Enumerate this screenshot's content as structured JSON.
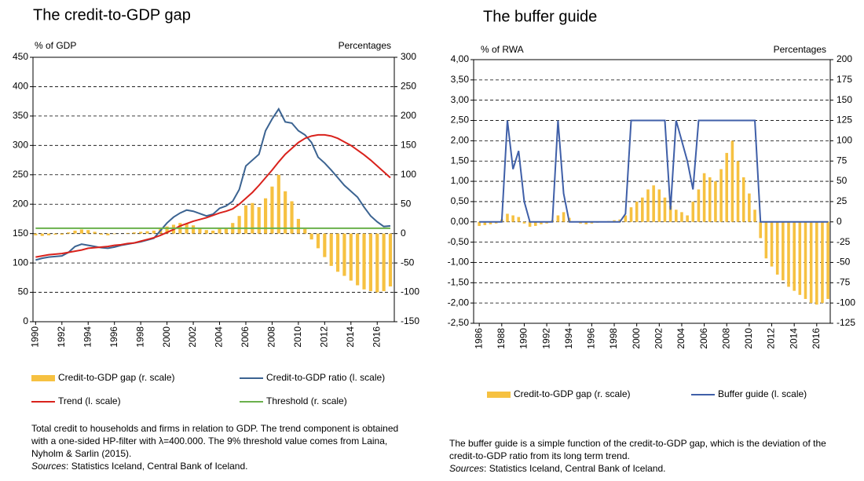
{
  "chart_data": [
    {
      "type": "combo",
      "title": "The credit-to-GDP gap",
      "y_label": "% of GDP",
      "y2_label": "Percentages",
      "xlim": [
        1989.8,
        2017.3
      ],
      "xticks": [
        1990,
        1992,
        1994,
        1996,
        1998,
        2000,
        2002,
        2004,
        2006,
        2008,
        2010,
        2012,
        2014,
        2016
      ],
      "ylim": [
        0,
        450
      ],
      "yticks": [
        0,
        50,
        100,
        150,
        200,
        250,
        300,
        350,
        400,
        450
      ],
      "y2lim": [
        -150,
        300
      ],
      "y2ticks": [
        -150,
        -100,
        -50,
        0,
        50,
        100,
        150,
        200,
        250,
        300
      ],
      "grid": true,
      "x": [
        1990,
        1990.5,
        1991,
        1991.5,
        1992,
        1992.5,
        1993,
        1993.5,
        1994,
        1994.5,
        1995,
        1995.5,
        1996,
        1996.5,
        1997,
        1997.5,
        1998,
        1998.5,
        1999,
        1999.5,
        2000,
        2000.5,
        2001,
        2001.5,
        2002,
        2002.5,
        2003,
        2003.5,
        2004,
        2004.5,
        2005,
        2005.5,
        2006,
        2006.5,
        2007,
        2007.5,
        2008,
        2008.5,
        2009,
        2009.5,
        2010,
        2010.5,
        2011,
        2011.5,
        2012,
        2012.5,
        2013,
        2013.5,
        2014,
        2014.5,
        2015,
        2015.5,
        2016,
        2016.5,
        2017
      ],
      "series": [
        {
          "name": "Credit-to-GDP gap (r. scale)",
          "type": "bar",
          "axis": "y2",
          "color": "#f6c141",
          "values": [
            -3,
            -4,
            -3,
            -2,
            -2,
            2,
            5,
            7,
            6,
            3,
            -2,
            -3,
            -1,
            0,
            1,
            2,
            3,
            4,
            5,
            8,
            12,
            15,
            18,
            17,
            14,
            10,
            6,
            5,
            8,
            10,
            18,
            30,
            48,
            52,
            45,
            60,
            80,
            100,
            72,
            55,
            25,
            8,
            -10,
            -25,
            -40,
            -55,
            -65,
            -72,
            -80,
            -88,
            -95,
            -98,
            -100,
            -98,
            -90
          ]
        },
        {
          "name": "Credit-to-GDP ratio (l. scale)",
          "type": "line",
          "color": "#3b6391",
          "values": [
            105,
            108,
            110,
            111,
            112,
            118,
            128,
            132,
            130,
            128,
            126,
            125,
            127,
            130,
            132,
            134,
            136,
            139,
            142,
            155,
            168,
            178,
            185,
            190,
            188,
            184,
            180,
            183,
            193,
            197,
            205,
            225,
            265,
            275,
            285,
            325,
            345,
            362,
            340,
            338,
            325,
            318,
            305,
            280,
            270,
            258,
            245,
            232,
            222,
            212,
            195,
            180,
            170,
            162,
            163
          ]
        },
        {
          "name": "Trend (l. scale)",
          "type": "line",
          "color": "#d9221c",
          "values": [
            110,
            112,
            114,
            115,
            116,
            118,
            120,
            122,
            125,
            126,
            127,
            128,
            130,
            131,
            133,
            134,
            137,
            140,
            143,
            147,
            152,
            157,
            163,
            167,
            171,
            174,
            177,
            181,
            185,
            188,
            192,
            200,
            210,
            220,
            232,
            245,
            258,
            272,
            285,
            295,
            305,
            312,
            316,
            318,
            318,
            316,
            312,
            306,
            300,
            292,
            284,
            275,
            265,
            255,
            245
          ]
        },
        {
          "name": "Threshold (r. scale)",
          "type": "line",
          "axis": "y2",
          "color": "#6ab04c",
          "values": [
            9,
            9,
            9,
            9,
            9,
            9,
            9,
            9,
            9,
            9,
            9,
            9,
            9,
            9,
            9,
            9,
            9,
            9,
            9,
            9,
            9,
            9,
            9,
            9,
            9,
            9,
            9,
            9,
            9,
            9,
            9,
            9,
            9,
            9,
            9,
            9,
            9,
            9,
            9,
            9,
            9,
            9,
            9,
            9,
            9,
            9,
            9,
            9,
            9,
            9,
            9,
            9,
            9,
            9,
            9
          ]
        }
      ],
      "note": "Total credit to households and firms in relation to GDP. The trend component is obtained with a one-sided HP-filter with λ=400.000. The 9% threshold value comes from Laina, Nyholm & Sarlin (2015).",
      "sources_label": "Sources",
      "sources_text": ": Statistics Iceland, Central Bank of Iceland."
    },
    {
      "type": "combo",
      "title": "The buffer guide",
      "y_label": "% of RWA",
      "y2_label": "Percentages",
      "xlim": [
        1985.5,
        2017.2
      ],
      "xticks": [
        1986,
        1988,
        1990,
        1992,
        1994,
        1996,
        1998,
        2000,
        2002,
        2004,
        2006,
        2008,
        2010,
        2012,
        2014,
        2016
      ],
      "ylim": [
        -2.5,
        4
      ],
      "yticks": [
        {
          "value": -2.5,
          "label": "-2,50"
        },
        {
          "value": -2,
          "label": "-2,00"
        },
        {
          "value": -1.5,
          "label": "-1,50"
        },
        {
          "value": -1,
          "label": "-1,00"
        },
        {
          "value": -0.5,
          "label": "-0,50"
        },
        {
          "value": 0,
          "label": "0,00"
        },
        {
          "value": 0.5,
          "label": "0,50"
        },
        {
          "value": 1,
          "label": "1,00"
        },
        {
          "value": 1.5,
          "label": "1,50"
        },
        {
          "value": 2,
          "label": "2,00"
        },
        {
          "value": 2.5,
          "label": "2,50"
        },
        {
          "value": 3,
          "label": "3,00"
        },
        {
          "value": 3.5,
          "label": "3,50"
        },
        {
          "value": 4,
          "label": "4,00"
        }
      ],
      "y2lim": [
        -125,
        200
      ],
      "y2ticks": [
        -125,
        -100,
        -75,
        -50,
        -25,
        0,
        25,
        50,
        75,
        100,
        125,
        150,
        175,
        200
      ],
      "grid": true,
      "x": [
        1986,
        1986.5,
        1987,
        1987.5,
        1988,
        1988.5,
        1989,
        1989.5,
        1990,
        1990.5,
        1991,
        1991.5,
        1992,
        1992.5,
        1993,
        1993.5,
        1994,
        1994.5,
        1995,
        1995.5,
        1996,
        1996.5,
        1997,
        1997.5,
        1998,
        1998.5,
        1999,
        1999.5,
        2000,
        2000.5,
        2001,
        2001.5,
        2002,
        2002.5,
        2003,
        2003.5,
        2004,
        2004.5,
        2005,
        2005.5,
        2006,
        2006.5,
        2007,
        2007.5,
        2008,
        2008.5,
        2009,
        2009.5,
        2010,
        2010.5,
        2011,
        2011.5,
        2012,
        2012.5,
        2013,
        2013.5,
        2014,
        2014.5,
        2015,
        2015.5,
        2016,
        2016.5,
        2017
      ],
      "series": [
        {
          "name": "Credit-to-GDP gap (r. scale)",
          "type": "bar",
          "axis": "y2",
          "color": "#f6c141",
          "values": [
            -5,
            -4,
            -3,
            -2,
            3,
            10,
            8,
            6,
            -2,
            -6,
            -5,
            -3,
            -2,
            2,
            8,
            12,
            5,
            0,
            -2,
            -3,
            -2,
            -1,
            0,
            1,
            2,
            3,
            8,
            18,
            25,
            30,
            40,
            45,
            40,
            30,
            20,
            15,
            12,
            8,
            25,
            40,
            60,
            55,
            50,
            65,
            85,
            100,
            75,
            55,
            35,
            15,
            -20,
            -45,
            -55,
            -65,
            -72,
            -80,
            -85,
            -90,
            -95,
            -100,
            -102,
            -100,
            -95
          ]
        },
        {
          "name": "Buffer guide (l. scale)",
          "type": "line",
          "color": "#3f5fa8",
          "values": [
            0,
            0,
            0,
            0,
            0,
            2.5,
            1.3,
            1.75,
            0.5,
            0,
            0,
            0,
            0,
            0,
            2.5,
            0.7,
            0,
            0,
            0,
            0,
            0,
            0,
            0,
            0,
            0,
            0,
            0.2,
            2.5,
            2.5,
            2.5,
            2.5,
            2.5,
            2.5,
            2.5,
            0.3,
            2.5,
            2,
            1.5,
            0.8,
            2.5,
            2.5,
            2.5,
            2.5,
            2.5,
            2.5,
            2.5,
            2.5,
            2.5,
            2.5,
            2.5,
            0,
            0,
            0,
            0,
            0,
            0,
            0,
            0,
            0,
            0,
            0,
            0,
            0
          ]
        }
      ],
      "note": "The buffer guide is a simple function of the credit-to-GDP gap, which is the deviation of the credit-to-GDP ratio from its long term trend.",
      "sources_label": "Sources",
      "sources_text": ": Statistics Iceland, Central Bank of Iceland."
    }
  ]
}
